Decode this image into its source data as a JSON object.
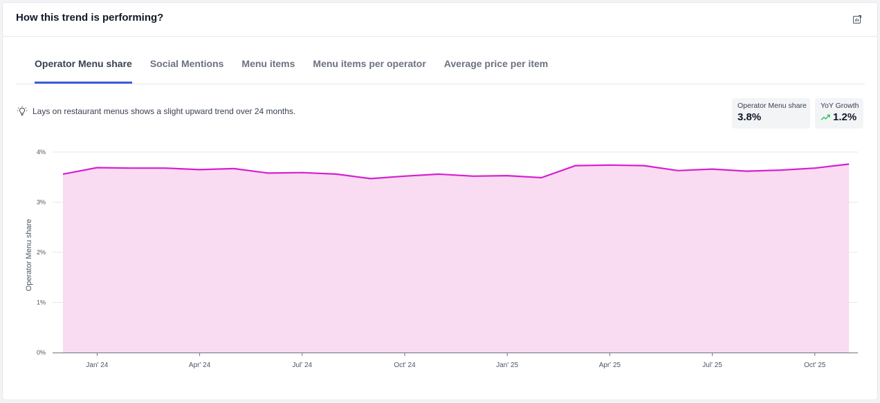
{
  "card": {
    "title": "How this trend is performing?",
    "export_icon": "chart-export-icon"
  },
  "tabs": [
    {
      "label": "Operator Menu share",
      "active": true
    },
    {
      "label": "Social Mentions",
      "active": false
    },
    {
      "label": "Menu items",
      "active": false
    },
    {
      "label": "Menu items per operator",
      "active": false
    },
    {
      "label": "Average price per item",
      "active": false
    }
  ],
  "insight": {
    "icon": "lightbulb-icon",
    "text": "Lays on restaurant menus shows a slight upward trend over 24 months."
  },
  "stats": {
    "share": {
      "label": "Operator Menu share",
      "value": "3.8%"
    },
    "yoy": {
      "label": "YoY Growth",
      "value": "1.2%",
      "trend_icon": "trend-up-icon",
      "trend_color": "#22c55e"
    }
  },
  "colors": {
    "accent": "#3b5bdb",
    "line": "#d61fd0",
    "area": "#f9dbf2"
  },
  "chart_data": {
    "type": "area",
    "ylabel": "Operator Menu share",
    "xlabel": "",
    "ylim": [
      0,
      4
    ],
    "y_ticks": [
      "0%",
      "1%",
      "2%",
      "3%",
      "4%"
    ],
    "grid": true,
    "x_tick_labels": [
      "Jan' 24",
      "Apr' 24",
      "Jul' 24",
      "Oct' 24",
      "Jan' 25",
      "Apr' 25",
      "Jul' 25",
      "Oct' 25"
    ],
    "x": [
      "Dec 2023",
      "Jan 2024",
      "Feb 2024",
      "Mar 2024",
      "Apr 2024",
      "May 2024",
      "Jun 2024",
      "Jul 2024",
      "Aug 2024",
      "Sep 2024",
      "Oct 2024",
      "Nov 2024",
      "Dec 2024",
      "Jan 2025",
      "Feb 2025",
      "Mar 2025",
      "Apr 2025",
      "May 2025",
      "Jun 2025",
      "Jul 2025",
      "Aug 2025",
      "Sep 2025",
      "Oct 2025",
      "Nov 2025"
    ],
    "values": [
      3.56,
      3.69,
      3.68,
      3.68,
      3.65,
      3.67,
      3.58,
      3.59,
      3.56,
      3.47,
      3.52,
      3.56,
      3.52,
      3.53,
      3.49,
      3.73,
      3.74,
      3.73,
      3.63,
      3.66,
      3.62,
      3.64,
      3.68,
      3.76
    ]
  }
}
